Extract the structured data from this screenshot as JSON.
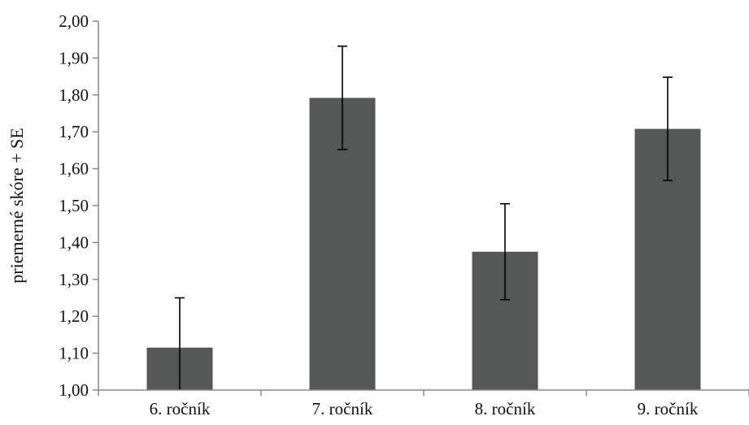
{
  "chart_data": {
    "type": "bar",
    "categories": [
      "6. ročník",
      "7. ročník",
      "8. ročník",
      "9. ročník"
    ],
    "values": [
      1.115,
      1.792,
      1.375,
      1.708
    ],
    "error": [
      0.135,
      0.14,
      0.13,
      0.14
    ],
    "ylabel": "priemerné skóre + SE",
    "xlabel": "",
    "ylim": [
      1.0,
      2.0
    ],
    "yticks": [
      "1,00",
      "1,10",
      "1,20",
      "1,30",
      "1,40",
      "1,50",
      "1,60",
      "1,70",
      "1,80",
      "1,90",
      "2,00"
    ],
    "grid": false,
    "bar_color": "#555857",
    "axis_color": "#888888"
  }
}
